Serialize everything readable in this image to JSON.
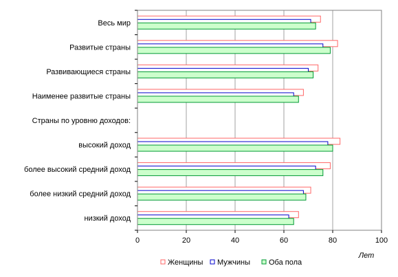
{
  "chart_data": {
    "type": "bar",
    "orientation": "horizontal",
    "categories": [
      "Весь мир",
      "Развитые страны",
      "Развивающиеся страны",
      "Наименее развитые страны",
      "Страны по уровню доходов:",
      "высокий доход",
      "более высокий средний доход",
      "более низкий средний доход",
      "низкий доход"
    ],
    "series": [
      {
        "name": "Женщины",
        "values": [
          75,
          82,
          74,
          68,
          null,
          83,
          79,
          71,
          66
        ],
        "fill": "#ffffff",
        "stroke": "#ff6666"
      },
      {
        "name": "Мужчины",
        "values": [
          71,
          76,
          70,
          64,
          null,
          78,
          73,
          68,
          62
        ],
        "fill": "#ffffff",
        "stroke": "#0000cc"
      },
      {
        "name": "Оба пола",
        "values": [
          73,
          79,
          72,
          66,
          null,
          80,
          76,
          69,
          64
        ],
        "fill": "#ccffcc",
        "stroke": "#009933"
      }
    ],
    "xlim": [
      0,
      100
    ],
    "xticks": [
      "0",
      "20",
      "40",
      "60",
      "80",
      "100"
    ],
    "xlabel": "Лет",
    "grid": "vertical",
    "legend_position": "bottom"
  }
}
